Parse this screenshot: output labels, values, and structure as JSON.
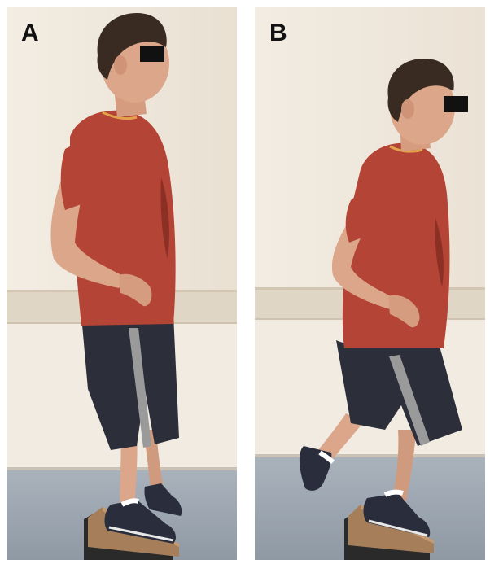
{
  "figure": {
    "panels": [
      {
        "label": "A"
      },
      {
        "label": "B"
      }
    ]
  },
  "colors": {
    "wall": "#efe7db",
    "wall_rail": "#ddd2c0",
    "floor": "#9ea8b2",
    "shirt": "#b34436",
    "shorts": "#2c2e3a",
    "shorts_stripe": "#9a9a9a",
    "skin": "#dba68a",
    "hair": "#3a2b22",
    "shoe": "#2a2d3c",
    "board": "#a67f5a",
    "censor_bar": "#111111"
  }
}
